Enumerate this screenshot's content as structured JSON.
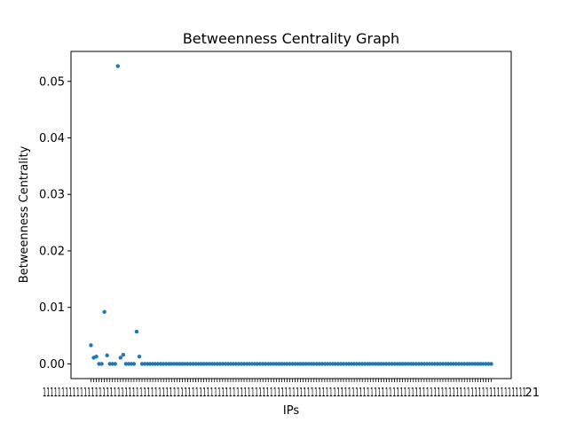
{
  "chart_data": {
    "type": "scatter",
    "title": "Betweenness Centrality Graph",
    "xlabel": "IPs",
    "ylabel": "Betweenness Centrality",
    "ylim": [
      -0.0026,
      0.0553
    ],
    "yticks": [
      0.0,
      0.01,
      0.02,
      0.03,
      0.04,
      0.05
    ],
    "ytick_labels": [
      "0.00",
      "0.01",
      "0.02",
      "0.03",
      "0.04",
      "0.05"
    ],
    "grid": false,
    "legend": "none",
    "marker_color": "#1f77b4",
    "x_tick_labels_note": "categorical IP labels overlap and are unreadable; last label ends in \"21\"",
    "x_tick_last_label_suffix": "21",
    "x_count": 150,
    "points": [
      0.0033,
      0.0011,
      0.0013,
      0.0,
      0.0,
      0.0092,
      0.0015,
      0.0,
      0.0,
      0.0,
      0.0527,
      0.0011,
      0.0016,
      0.0,
      0.0,
      0.0,
      0.0,
      0.0057,
      0.0013,
      0.0
    ],
    "remaining_value": 0.0
  }
}
